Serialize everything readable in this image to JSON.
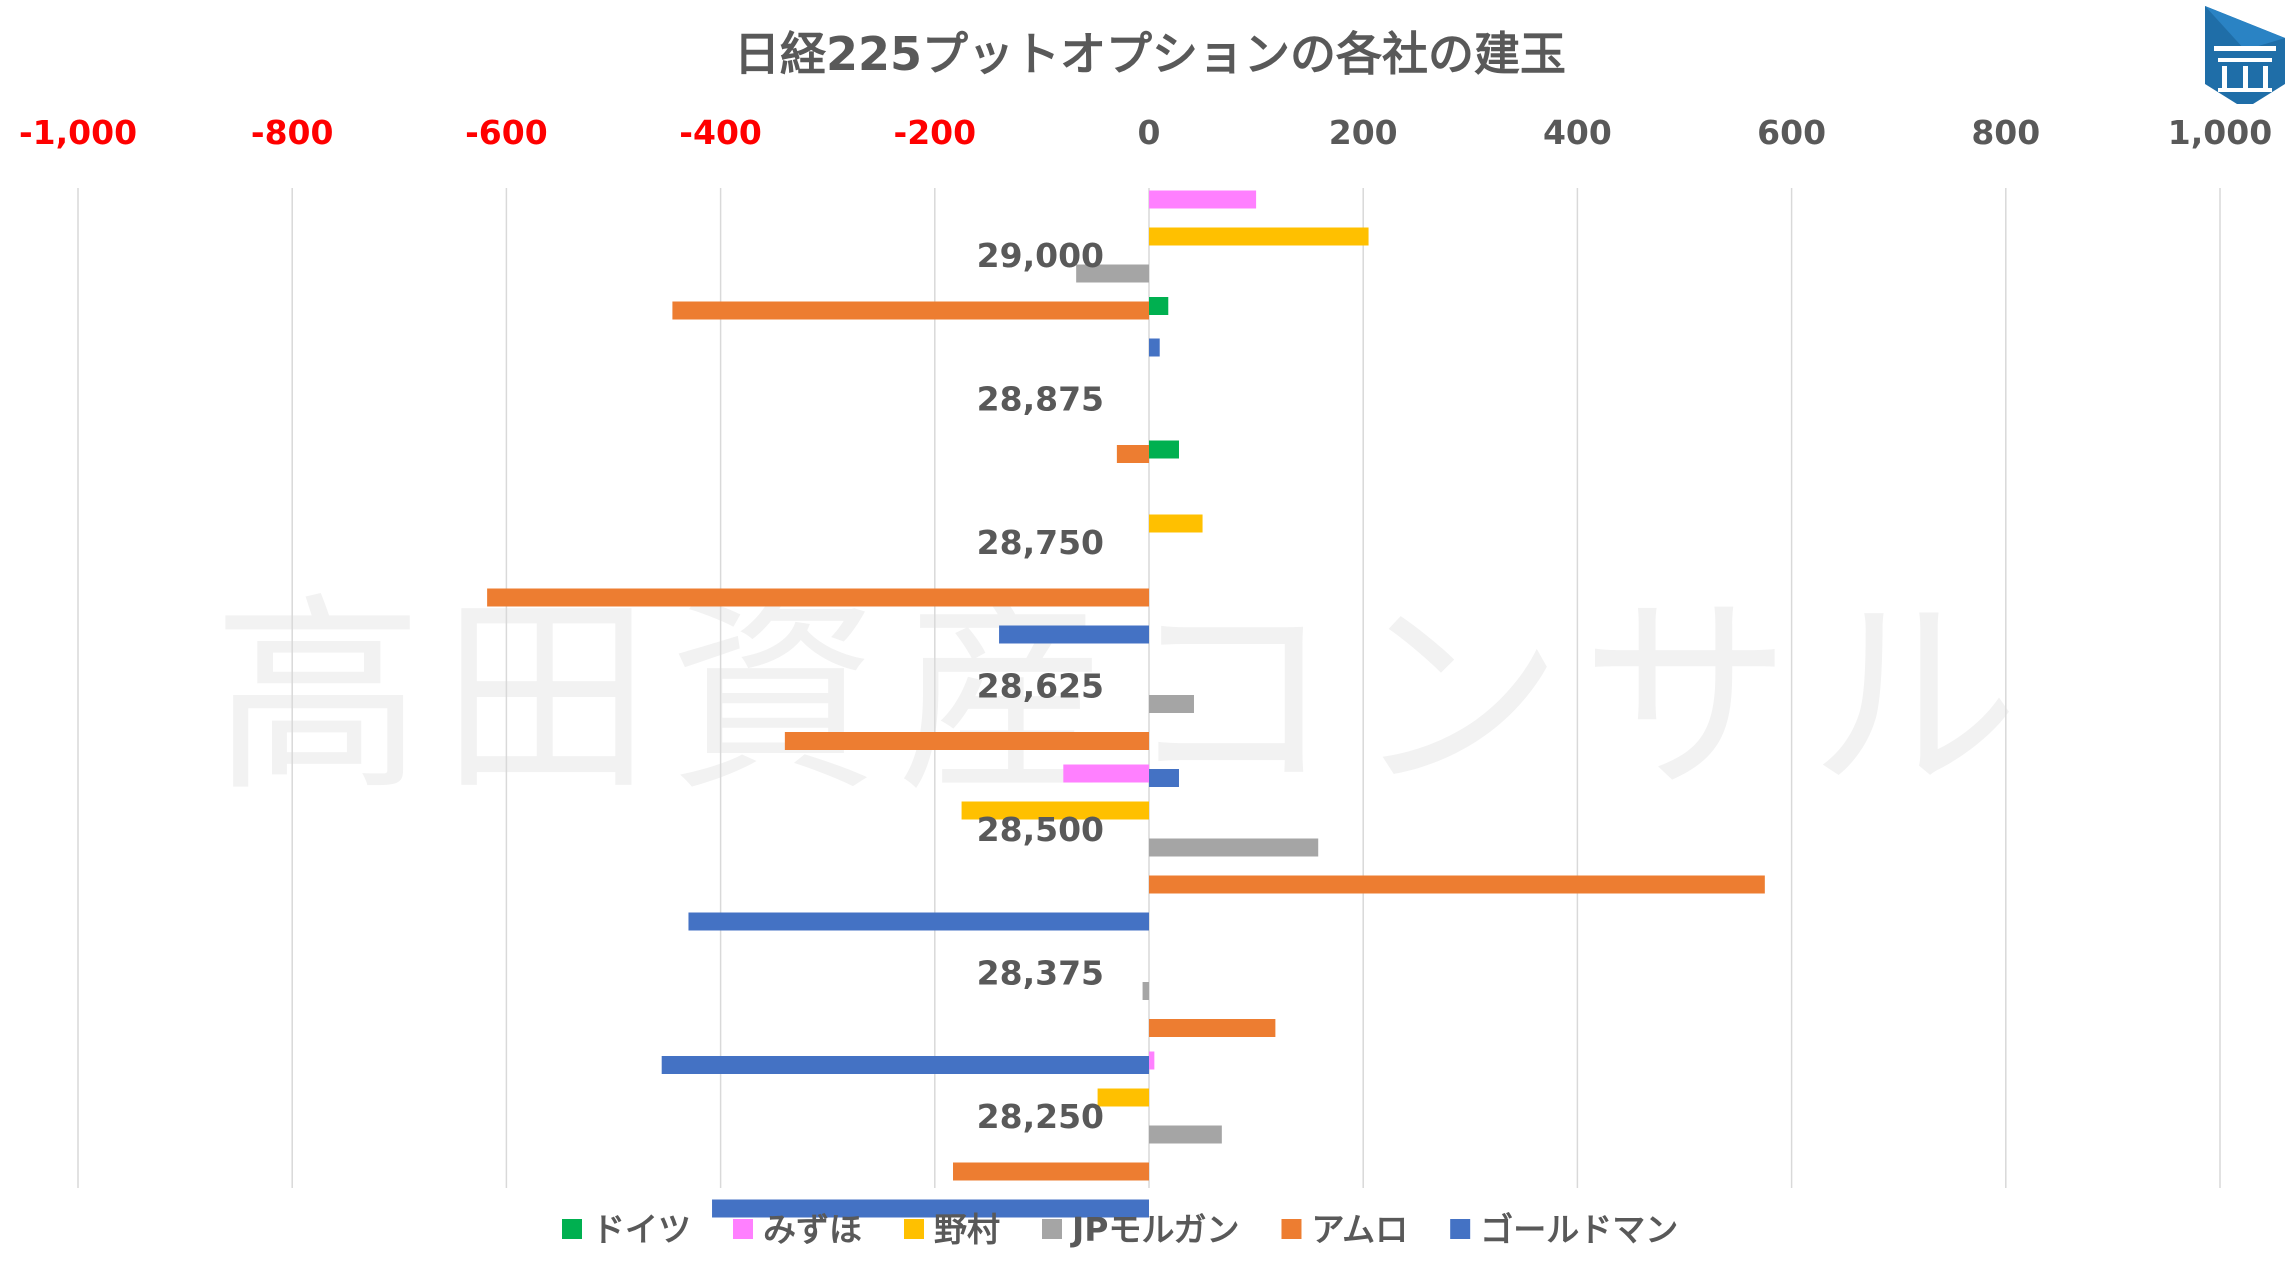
{
  "chart_data": {
    "type": "bar",
    "orientation": "horizontal",
    "title": "日経225プットオプションの各社の建玉",
    "watermark": "高田資産コンサル",
    "logo_icon": "building-logo-icon",
    "xlim": [
      -1000,
      1000
    ],
    "x_ticks": [
      -1000,
      -800,
      -600,
      -400,
      -200,
      0,
      200,
      400,
      600,
      800,
      1000
    ],
    "x_tick_labels": [
      "-1,000",
      "-800",
      "-600",
      "-400",
      "-200",
      "0",
      "200",
      "400",
      "600",
      "800",
      "1,000"
    ],
    "negative_tick_color": "#ff0000",
    "positive_tick_color": "#595959",
    "grid": true,
    "legend_position": "bottom",
    "categories": [
      "29,000",
      "28,875",
      "28,750",
      "28,625",
      "28,500",
      "28,375",
      "28,250"
    ],
    "series": [
      {
        "name": "ドイツ",
        "color": "#00b050",
        "values": [
          0,
          18,
          28,
          0,
          0,
          0,
          0
        ]
      },
      {
        "name": "みずほ",
        "color": "#ff80ff",
        "values": [
          100,
          0,
          0,
          0,
          -80,
          0,
          5
        ]
      },
      {
        "name": "野村",
        "color": "#ffc000",
        "values": [
          205,
          0,
          50,
          0,
          -175,
          0,
          -48
        ]
      },
      {
        "name": "JPモルガン",
        "color": "#a5a5a5",
        "values": [
          -68,
          0,
          0,
          42,
          158,
          -6,
          68
        ]
      },
      {
        "name": "アムロ",
        "color": "#ed7d31",
        "values": [
          -445,
          -30,
          -618,
          -340,
          575,
          118,
          -183
        ]
      },
      {
        "name": "ゴールドマン",
        "color": "#4472c4",
        "values": [
          10,
          0,
          -140,
          28,
          -430,
          -455,
          -408
        ]
      }
    ]
  }
}
